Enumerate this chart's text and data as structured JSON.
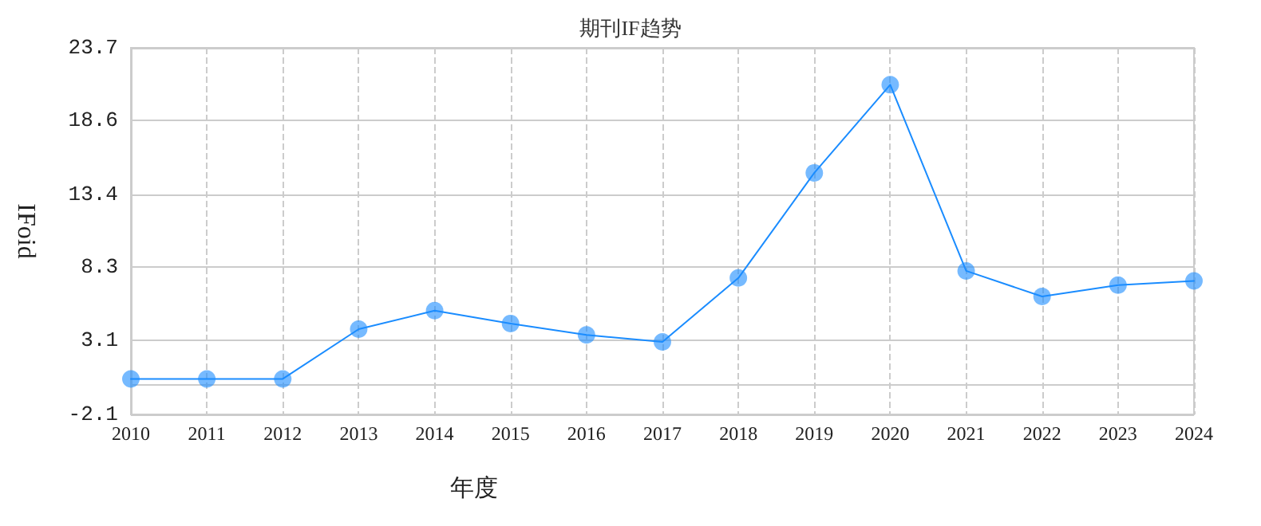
{
  "chart_data": {
    "type": "line",
    "title": "期刊IF趋势",
    "xlabel": "年度",
    "ylabel": "IFoid",
    "categories": [
      "2010",
      "2011",
      "2012",
      "2013",
      "2014",
      "2015",
      "2016",
      "2017",
      "2018",
      "2019",
      "2020",
      "2021",
      "2022",
      "2023",
      "2024"
    ],
    "series": [
      {
        "color": "#1a8cff",
        "values": [
          0.4,
          0.4,
          0.4,
          3.9,
          5.2,
          4.3,
          3.5,
          3.0,
          7.5,
          14.9,
          21.1,
          8.0,
          6.2,
          7.0,
          7.3
        ]
      }
    ],
    "ylim": [
      -2.1,
      23.7
    ],
    "yticks": [
      -2.1,
      3.1,
      8.3,
      13.4,
      18.6,
      23.7
    ],
    "grid": true,
    "marker": "circle",
    "line_style": "solid"
  }
}
